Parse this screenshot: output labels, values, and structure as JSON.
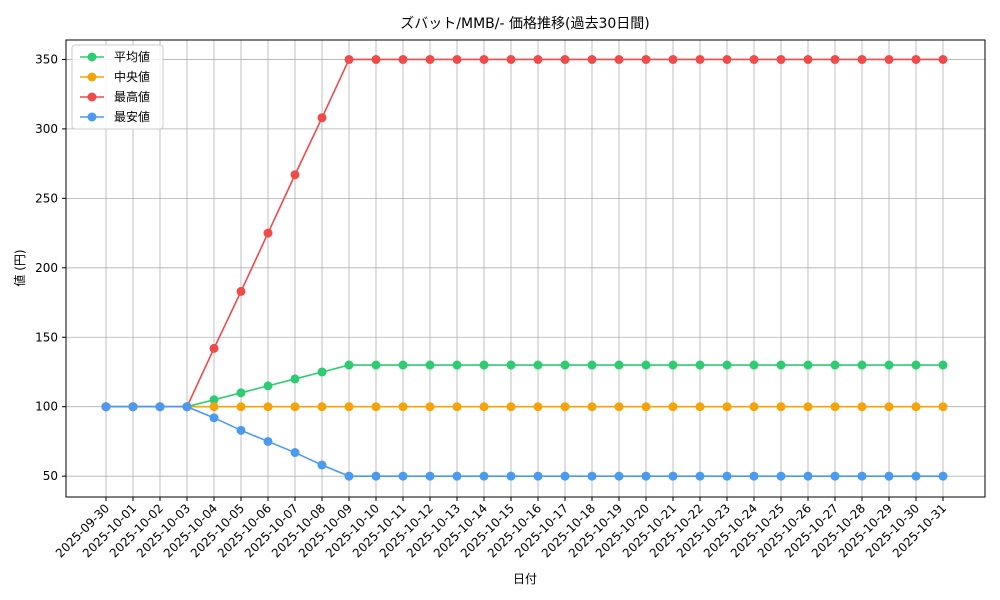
{
  "chart_data": {
    "type": "line",
    "title": "ズバット/MMB/- 価格推移(過去30日間)",
    "xlabel": "日付",
    "ylabel": "値 (円)",
    "categories": [
      "2025-09-30",
      "2025-10-01",
      "2025-10-02",
      "2025-10-03",
      "2025-10-04",
      "2025-10-05",
      "2025-10-06",
      "2025-10-07",
      "2025-10-08",
      "2025-10-09",
      "2025-10-10",
      "2025-10-11",
      "2025-10-12",
      "2025-10-13",
      "2025-10-14",
      "2025-10-15",
      "2025-10-16",
      "2025-10-17",
      "2025-10-18",
      "2025-10-19",
      "2025-10-20",
      "2025-10-21",
      "2025-10-22",
      "2025-10-23",
      "2025-10-24",
      "2025-10-25",
      "2025-10-26",
      "2025-10-27",
      "2025-10-28",
      "2025-10-29",
      "2025-10-30",
      "2025-10-31"
    ],
    "series": [
      {
        "name": "平均値",
        "color": "#2ecc71",
        "values": [
          100,
          100,
          100,
          100,
          105,
          110,
          115,
          120,
          125,
          130,
          130,
          130,
          130,
          130,
          130,
          130,
          130,
          130,
          130,
          130,
          130,
          130,
          130,
          130,
          130,
          130,
          130,
          130,
          130,
          130,
          130,
          130
        ]
      },
      {
        "name": "中央値",
        "color": "#f5a30a",
        "values": [
          100,
          100,
          100,
          100,
          100,
          100,
          100,
          100,
          100,
          100,
          100,
          100,
          100,
          100,
          100,
          100,
          100,
          100,
          100,
          100,
          100,
          100,
          100,
          100,
          100,
          100,
          100,
          100,
          100,
          100,
          100,
          100
        ]
      },
      {
        "name": "最高値",
        "color": "#f04a4a",
        "values": [
          100,
          100,
          100,
          100,
          142,
          183,
          225,
          267,
          308,
          350,
          350,
          350,
          350,
          350,
          350,
          350,
          350,
          350,
          350,
          350,
          350,
          350,
          350,
          350,
          350,
          350,
          350,
          350,
          350,
          350,
          350,
          350
        ]
      },
      {
        "name": "最安値",
        "color": "#4a9af0",
        "values": [
          100,
          100,
          100,
          100,
          92,
          83,
          75,
          67,
          58,
          50,
          50,
          50,
          50,
          50,
          50,
          50,
          50,
          50,
          50,
          50,
          50,
          50,
          50,
          50,
          50,
          50,
          50,
          50,
          50,
          50,
          50,
          50
        ]
      }
    ],
    "ylim": [
      35,
      364
    ],
    "yticks": [
      50,
      100,
      150,
      200,
      250,
      300,
      350
    ],
    "grid": true,
    "legend": "upper left"
  }
}
